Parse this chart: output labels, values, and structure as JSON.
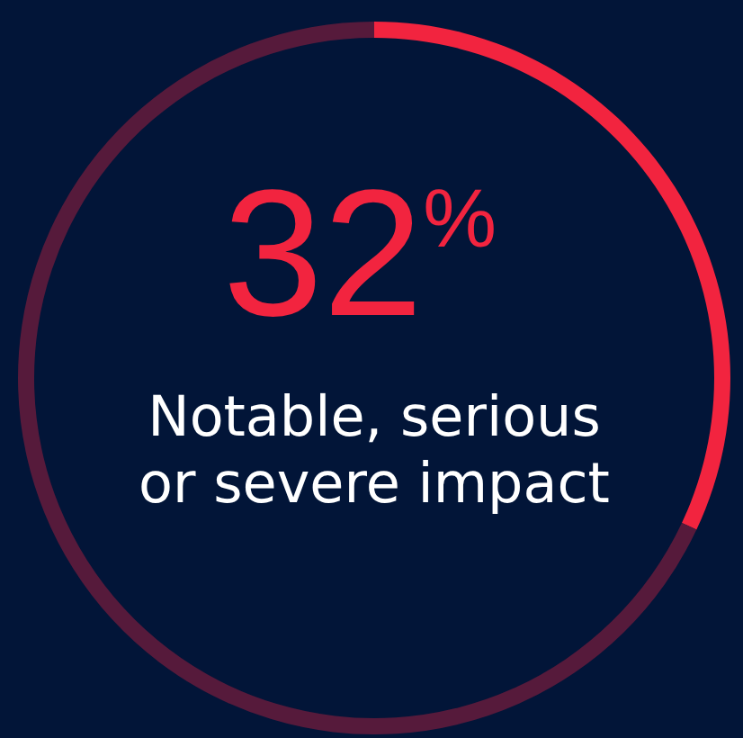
{
  "chart_data": {
    "type": "donut",
    "categories": [
      "Notable, serious or severe impact",
      null
    ],
    "values": [
      32,
      68
    ],
    "colors": [
      "#f2243f",
      "#561a3b"
    ],
    "value_labels": [
      "32$^{%}$",
      null
    ]
  }
}
